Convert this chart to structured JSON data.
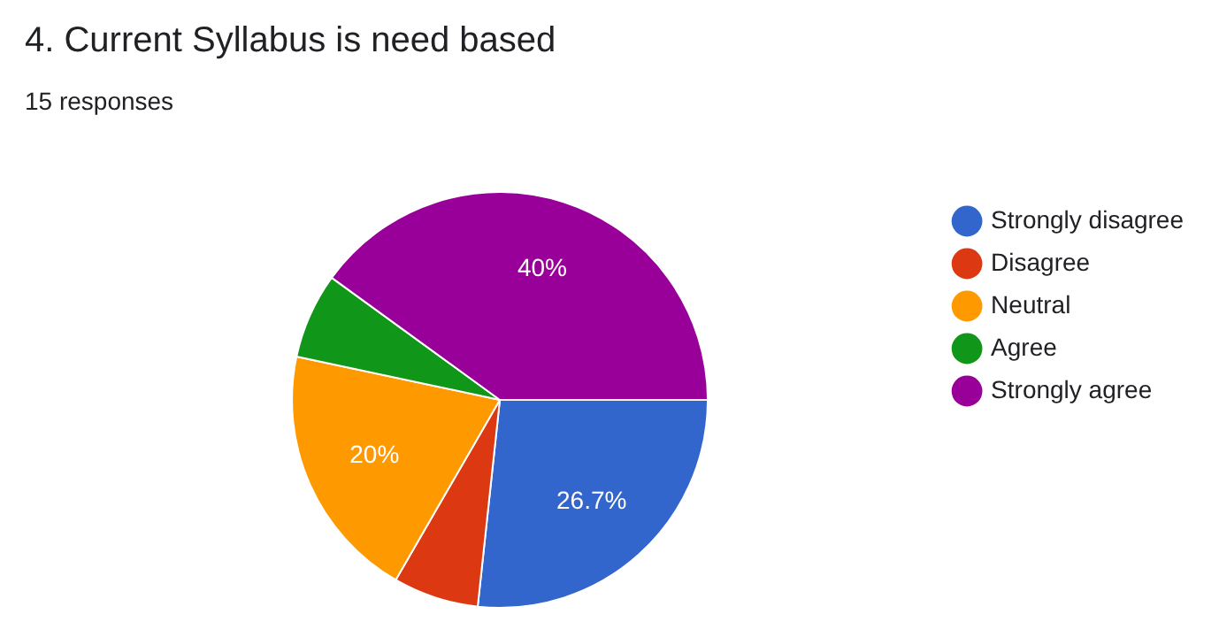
{
  "chart_data": {
    "type": "pie",
    "title": "4. Current Syllabus is need based",
    "subtitle": "15 responses",
    "categories": [
      "Strongly disagree",
      "Disagree",
      "Neutral",
      "Agree",
      "Strongly agree"
    ],
    "values": [
      26.7,
      6.65,
      20,
      6.65,
      40
    ],
    "value_labels": [
      "26.7%",
      null,
      "20%",
      null,
      "40%"
    ],
    "colors": [
      "#3366cc",
      "#dc3912",
      "#ff9900",
      "#109618",
      "#990099"
    ],
    "legend": "right"
  }
}
